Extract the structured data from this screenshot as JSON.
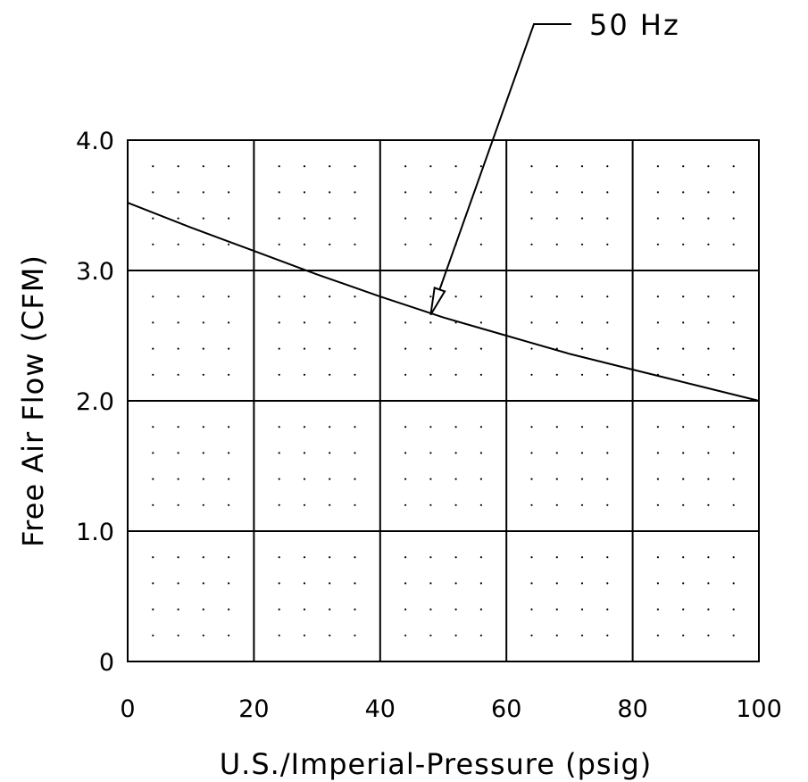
{
  "chart_data": {
    "type": "line",
    "xlabel": "U.S./Imperial-Pressure (psig)",
    "ylabel": "Free Air Flow (CFM)",
    "xlim": [
      0,
      100
    ],
    "ylim": [
      0,
      4.0
    ],
    "x_ticks": [
      "0",
      "20",
      "40",
      "60",
      "80",
      "100"
    ],
    "y_ticks": [
      "0",
      "1.0",
      "2.0",
      "3.0",
      "4.0"
    ],
    "grid": true,
    "minor_grid": "dotted",
    "series": [
      {
        "name": "50 Hz",
        "x": [
          0,
          10,
          20,
          30,
          40,
          50,
          60,
          70,
          80,
          90,
          100
        ],
        "y": [
          3.52,
          3.33,
          3.15,
          2.97,
          2.8,
          2.64,
          2.5,
          2.36,
          2.24,
          2.12,
          2.0
        ]
      }
    ],
    "annotations": [
      {
        "text": "50 Hz",
        "target_x": 48,
        "target_y": 2.66
      }
    ]
  }
}
